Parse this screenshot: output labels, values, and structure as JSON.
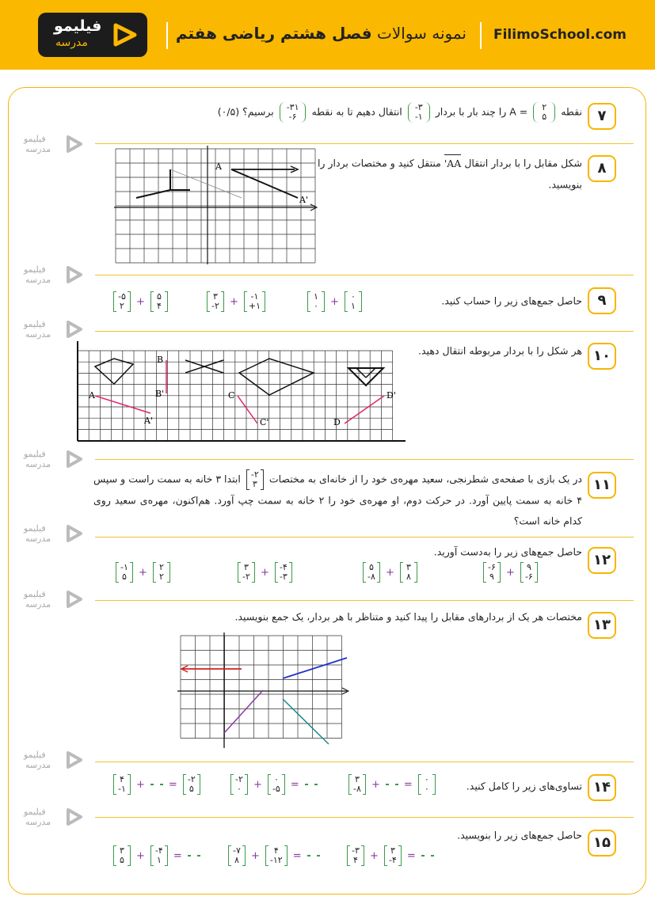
{
  "header": {
    "brand_line1": "فیلیمو",
    "brand_line2": "مدرسه",
    "title_regular": "نمونه سوالات",
    "title_bold": "فصل هشتم ریاضی هفتم",
    "site": "FilimoSchool.com"
  },
  "watermark": {
    "line1": "فیلیمو",
    "line2": "مدرسه"
  },
  "questions": [
    {
      "number": "۷",
      "segments": [
        {
          "text": "نقطه"
        },
        {
          "vector": [
            "۲",
            "۵"
          ]
        },
        {
          "text": "= A را چند بار با بردار"
        },
        {
          "vector": [
            "-۳",
            "-۱"
          ]
        },
        {
          "text": "انتقال دهیم تا به نقطه"
        },
        {
          "vector": [
            "-۳۱",
            "-۶"
          ]
        },
        {
          "text": "برسیم؟ (۰/۵)"
        }
      ]
    },
    {
      "number": "۸",
      "segments": [
        {
          "text": "شکل مقابل را با بردار انتقال"
        },
        {
          "arrow": "AA'"
        },
        {
          "text": "منتقل کنید و مختصات بردار را بنویسید."
        }
      ],
      "figure_labels": [
        "A",
        "A'"
      ]
    },
    {
      "number": "۹",
      "segments": [
        {
          "text": "حاصل جمع‌های زیر را حساب کنید."
        }
      ],
      "expressions": [
        [
          [
            "-۵",
            "۲"
          ],
          "+",
          [
            "۵",
            "۴"
          ]
        ],
        [
          [
            "۳",
            "-۲"
          ],
          "+",
          [
            "-۱",
            "+۱"
          ]
        ],
        [
          [
            "۱",
            "۰"
          ],
          "+",
          [
            "۰",
            "۱"
          ]
        ]
      ]
    },
    {
      "number": "۱۰",
      "segments": [
        {
          "text": "هر شکل را با بردار مربوطه انتقال دهید."
        }
      ],
      "figure_labels": [
        "A",
        "A'",
        "B",
        "B'",
        "C",
        "C'",
        "D",
        "D'"
      ]
    },
    {
      "number": "۱۱",
      "segments": [
        {
          "text": "در یک بازی با صفحه‌ی شطرنجی، سعید مهره‌ی خود را از خانه‌ای به مختصات"
        },
        {
          "vector": [
            "-۲",
            "۳"
          ]
        },
        {
          "text": "ابتدا ۳ خانه به سمت راست و سپس ۴ خانه به سمت پایین آورد. در حرکت دوم، او مهره‌ی خود را ۲ خانه به سمت چپ آورد. هم‌اکنون، مهره‌ی سعید روی کدام خانه است؟"
        }
      ]
    },
    {
      "number": "۱۲",
      "segments": [
        {
          "text": "حاصل جمع‌های زیر را به‌دست آورید."
        }
      ],
      "expressions": [
        [
          [
            "-۱",
            "۵"
          ],
          "+",
          [
            "۲",
            "۲"
          ]
        ],
        [
          [
            "۳",
            "-۲"
          ],
          "+",
          [
            "-۴",
            "-۳"
          ]
        ],
        [
          [
            "۵",
            "-۸"
          ],
          "+",
          [
            "۳",
            "۸"
          ]
        ],
        [
          [
            "-۶",
            "۹"
          ],
          "+",
          [
            "۹",
            "-۶"
          ]
        ]
      ]
    },
    {
      "number": "۱۳",
      "segments": [
        {
          "text": "مختصات هر یک از بردارهای مقابل را پیدا کنید و متناظر با هر بردار، یک جمع بنویسید."
        }
      ]
    },
    {
      "number": "۱۴",
      "segments": [
        {
          "text": "تساوی‌های زیر را کامل کنید."
        }
      ],
      "expressions": [
        [
          [
            "۴",
            "-۱"
          ],
          "+",
          [],
          "=",
          [
            "-۲",
            "۵"
          ]
        ],
        [
          [
            "-۲",
            "۰"
          ],
          "+",
          [
            "۰",
            "-۵"
          ],
          "=",
          []
        ],
        [
          [
            "۳",
            "-۸"
          ],
          "+",
          [],
          "=",
          [
            "۰",
            "۰"
          ]
        ]
      ]
    },
    {
      "number": "۱۵",
      "segments": [
        {
          "text": "حاصل جمع‌های زیر را بنویسید."
        }
      ],
      "expressions": [
        [
          [
            "۳",
            "۵"
          ],
          "+",
          [
            "-۴",
            "۱"
          ],
          "=",
          []
        ],
        [
          [
            "-۷",
            "۸"
          ],
          "+",
          [
            "۴",
            "-۱۲"
          ],
          "=",
          []
        ],
        [
          [
            "-۳",
            "۴"
          ],
          "+",
          [
            "۳",
            "-۴"
          ],
          "=",
          []
        ]
      ]
    }
  ]
}
